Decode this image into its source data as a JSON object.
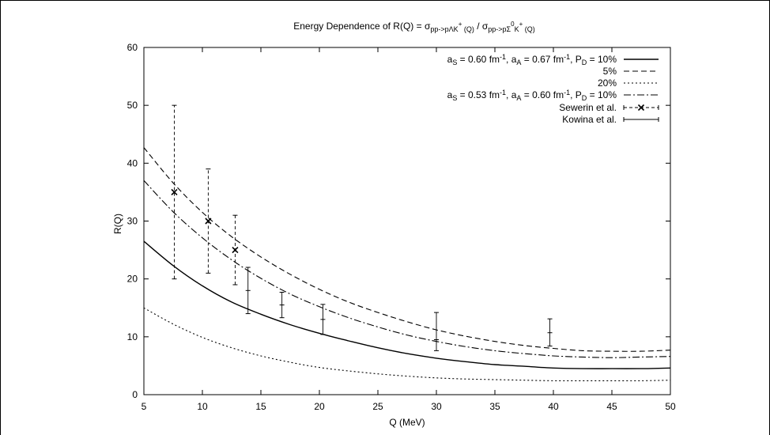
{
  "chart_data": {
    "type": "line",
    "title": {
      "pre": "Energy Dependence of R(Q) = σ",
      "sub1": "pp->pΛK",
      "sup1": "+",
      "sub1b": " (Q)",
      "mid": " / σ",
      "sub2": "pp->pΣ",
      "sup2": "0",
      "sub2b": "K",
      "sup2b": "+",
      "sub2c": " (Q)"
    },
    "xlabel": "Q (MeV)",
    "ylabel": "R(Q)",
    "xlim": [
      5,
      50
    ],
    "ylim": [
      0,
      60
    ],
    "xticks": [
      "5",
      "10",
      "15",
      "20",
      "25",
      "30",
      "35",
      "40",
      "45",
      "50"
    ],
    "yticks": [
      "0",
      "10",
      "20",
      "30",
      "40",
      "50",
      "60"
    ],
    "grid": false,
    "legend_position": "top-right",
    "series": [
      {
        "style": "solid",
        "legend": {
          "parts": [
            {
              "t": "a"
            },
            {
              "t": "S",
              "s": "sub"
            },
            {
              "t": " = 0.60 fm"
            },
            {
              "t": "-1",
              "s": "sup"
            },
            {
              "t": ", a"
            },
            {
              "t": "A",
              "s": "sub"
            },
            {
              "t": " = 0.67 fm"
            },
            {
              "t": "-1",
              "s": "sup"
            },
            {
              "t": ", P"
            },
            {
              "t": "D",
              "s": "sub"
            },
            {
              "t": " = 10%"
            }
          ]
        },
        "x": [
          5,
          7.5,
          10,
          12.5,
          15,
          17.5,
          20,
          22.5,
          25,
          27.5,
          30,
          32.5,
          35,
          37.5,
          40,
          42.5,
          45,
          47.5,
          50
        ],
        "y": [
          26.5,
          22.3,
          18.8,
          16.0,
          13.9,
          12.1,
          10.6,
          9.3,
          8.1,
          7.1,
          6.3,
          5.7,
          5.2,
          4.9,
          4.6,
          4.5,
          4.5,
          4.5,
          4.6
        ]
      },
      {
        "style": "dashed",
        "legend": {
          "parts": [
            {
              "t": "5%"
            }
          ]
        },
        "x": [
          5,
          7.5,
          10,
          12.5,
          15,
          17.5,
          20,
          22.5,
          25,
          27.5,
          30,
          32.5,
          35,
          37.5,
          40,
          42.5,
          45,
          47.5,
          50
        ],
        "y": [
          42.7,
          36.6,
          31.5,
          27.3,
          23.8,
          20.8,
          18.2,
          16.0,
          14.2,
          12.6,
          11.2,
          10.1,
          9.2,
          8.5,
          8.0,
          7.6,
          7.5,
          7.5,
          7.7
        ]
      },
      {
        "style": "dotted",
        "legend": {
          "parts": [
            {
              "t": "20%"
            }
          ]
        },
        "x": [
          5,
          7.5,
          10,
          12.5,
          15,
          17.5,
          20,
          22.5,
          25,
          27.5,
          30,
          32.5,
          35,
          37.5,
          40,
          42.5,
          45,
          47.5,
          50
        ],
        "y": [
          15.0,
          12.2,
          9.9,
          8.1,
          6.7,
          5.6,
          4.7,
          4.1,
          3.6,
          3.2,
          2.9,
          2.7,
          2.6,
          2.5,
          2.4,
          2.4,
          2.4,
          2.4,
          2.5
        ]
      },
      {
        "style": "dashdot",
        "legend": {
          "parts": [
            {
              "t": "a"
            },
            {
              "t": "S",
              "s": "sub"
            },
            {
              "t": " = 0.53 fm"
            },
            {
              "t": "-1",
              "s": "sup"
            },
            {
              "t": ", a"
            },
            {
              "t": "A",
              "s": "sub"
            },
            {
              "t": " = 0.60 fm"
            },
            {
              "t": "-1",
              "s": "sup"
            },
            {
              "t": ", P"
            },
            {
              "t": "D",
              "s": "sub"
            },
            {
              "t": " = 10%"
            }
          ]
        },
        "x": [
          5,
          7.5,
          10,
          12.5,
          15,
          17.5,
          20,
          22.5,
          25,
          27.5,
          30,
          32.5,
          35,
          37.5,
          40,
          42.5,
          45,
          47.5,
          50
        ],
        "y": [
          37.0,
          31.6,
          27.1,
          23.3,
          20.1,
          17.4,
          15.2,
          13.3,
          11.7,
          10.3,
          9.2,
          8.3,
          7.6,
          7.1,
          6.7,
          6.5,
          6.4,
          6.5,
          6.6
        ]
      }
    ],
    "datasets": [
      {
        "name": "Sewerin et al.",
        "marker": "x",
        "errstyle": "dashed",
        "points": [
          {
            "x": 7.6,
            "y": 35,
            "ylo": 20,
            "yhi": 50
          },
          {
            "x": 10.5,
            "y": 30,
            "ylo": 21,
            "yhi": 39
          },
          {
            "x": 12.8,
            "y": 25,
            "ylo": 19,
            "yhi": 31
          }
        ]
      },
      {
        "name": "Kowina et al.",
        "marker": "bar",
        "errstyle": "solid",
        "points": [
          {
            "x": 13.9,
            "y": 18,
            "ylo": 14,
            "yhi": 22
          },
          {
            "x": 16.8,
            "y": 15.5,
            "ylo": 13.3,
            "yhi": 17.7
          },
          {
            "x": 20.3,
            "y": 13,
            "ylo": 10.4,
            "yhi": 15.6
          },
          {
            "x": 30.0,
            "y": 9.5,
            "ylo": 7.6,
            "yhi": 14.2
          },
          {
            "x": 39.7,
            "y": 10.7,
            "ylo": 8.4,
            "yhi": 13.1
          }
        ]
      }
    ]
  }
}
